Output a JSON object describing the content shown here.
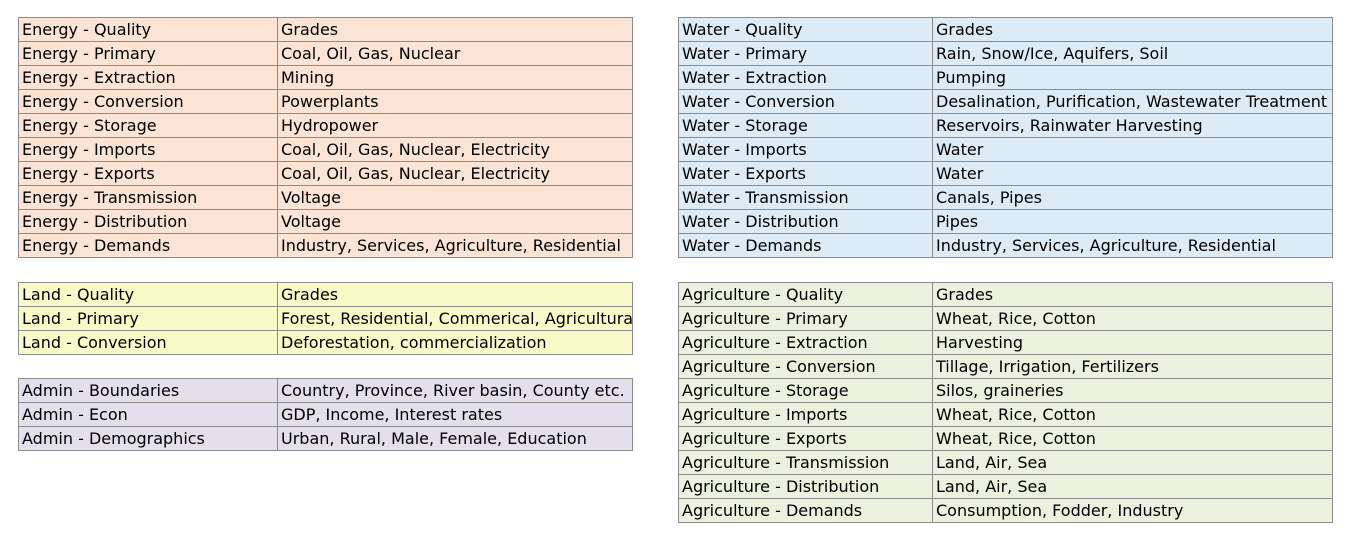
{
  "energy": {
    "color": "#fbe4d5",
    "rows": [
      {
        "category": "Energy - Quality",
        "values": "Grades"
      },
      {
        "category": "Energy - Primary",
        "values": "Coal, Oil, Gas, Nuclear"
      },
      {
        "category": "Energy - Extraction",
        "values": "Mining"
      },
      {
        "category": "Energy - Conversion",
        "values": "Powerplants"
      },
      {
        "category": "Energy - Storage",
        "values": "Hydropower"
      },
      {
        "category": "Energy - Imports",
        "values": "Coal, Oil, Gas, Nuclear, Electricity"
      },
      {
        "category": "Energy - Exports",
        "values": "Coal, Oil, Gas, Nuclear, Electricity"
      },
      {
        "category": "Energy - Transmission",
        "values": "Voltage"
      },
      {
        "category": "Energy - Distribution",
        "values": "Voltage"
      },
      {
        "category": "Energy - Demands",
        "values": "Industry, Services, Agriculture, Residential"
      }
    ]
  },
  "water": {
    "color": "#ddebf7",
    "rows": [
      {
        "category": "Water - Quality",
        "values": "Grades"
      },
      {
        "category": "Water - Primary",
        "values": "Rain, Snow/Ice, Aquifers, Soil"
      },
      {
        "category": "Water - Extraction",
        "values": "Pumping"
      },
      {
        "category": "Water - Conversion",
        "values": "Desalination, Purification, Wastewater Treatment"
      },
      {
        "category": "Water - Storage",
        "values": "Reservoirs, Rainwater Harvesting"
      },
      {
        "category": "Water - Imports",
        "values": "Water"
      },
      {
        "category": "Water - Exports",
        "values": "Water"
      },
      {
        "category": "Water - Transmission",
        "values": "Canals, Pipes"
      },
      {
        "category": "Water - Distribution",
        "values": "Pipes"
      },
      {
        "category": "Water - Demands",
        "values": "Industry, Services, Agriculture, Residential"
      }
    ]
  },
  "land": {
    "color": "#fafac8",
    "rows": [
      {
        "category": "Land - Quality",
        "values": "Grades"
      },
      {
        "category": "Land - Primary",
        "values": "Forest, Residential, Commerical, Agricultural"
      },
      {
        "category": "Land - Conversion",
        "values": "Deforestation, commercialization"
      }
    ]
  },
  "admin": {
    "color": "#e4dfec",
    "rows": [
      {
        "category": "Admin - Boundaries",
        "values": "Country, Province, River basin, County etc."
      },
      {
        "category": "Admin - Econ",
        "values": "GDP, Income, Interest rates"
      },
      {
        "category": "Admin - Demographics",
        "values": "Urban, Rural, Male, Female, Education"
      }
    ]
  },
  "agriculture": {
    "color": "#ebf1de",
    "rows": [
      {
        "category": "Agriculture - Quality",
        "values": "Grades"
      },
      {
        "category": "Agriculture - Primary",
        "values": "Wheat, Rice, Cotton"
      },
      {
        "category": "Agriculture - Extraction",
        "values": "Harvesting"
      },
      {
        "category": "Agriculture - Conversion",
        "values": "Tillage, Irrigation, Fertilizers"
      },
      {
        "category": "Agriculture - Storage",
        "values": "Silos, graineries"
      },
      {
        "category": "Agriculture - Imports",
        "values": "Wheat, Rice, Cotton"
      },
      {
        "category": "Agriculture - Exports",
        "values": "Wheat, Rice, Cotton"
      },
      {
        "category": "Agriculture - Transmission",
        "values": "Land, Air, Sea"
      },
      {
        "category": "Agriculture - Distribution",
        "values": "Land, Air, Sea"
      },
      {
        "category": "Agriculture - Demands",
        "values": "Consumption, Fodder, Industry"
      }
    ]
  }
}
